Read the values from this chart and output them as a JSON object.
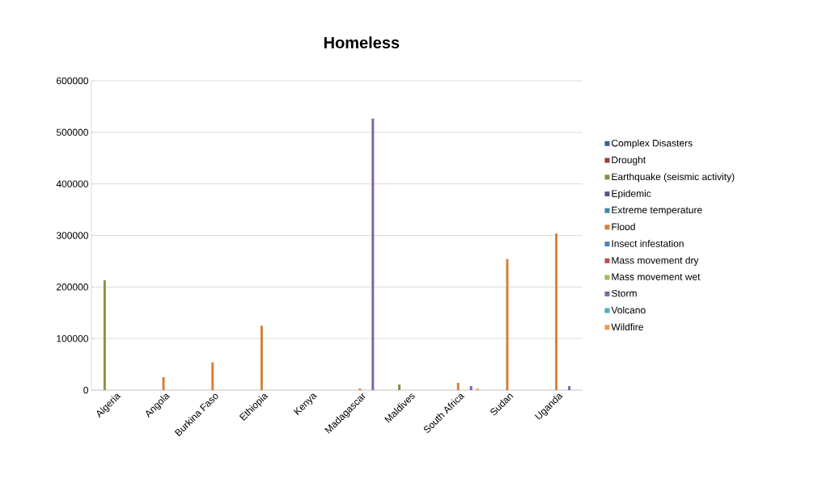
{
  "chart_data": {
    "type": "bar",
    "title": "Homeless",
    "categories": [
      "Algeria",
      "Angola",
      "Burkina Faso",
      "Ethiopia",
      "Kenya",
      "Madagascar",
      "Maldives",
      "South Africa",
      "Sudan",
      "Uganda"
    ],
    "series": [
      {
        "name": "Complex Disasters",
        "color": "#3a5f8e",
        "values": [
          null,
          null,
          null,
          null,
          null,
          null,
          null,
          null,
          null,
          null
        ]
      },
      {
        "name": "Drought",
        "color": "#9b3c39",
        "values": [
          null,
          null,
          null,
          null,
          null,
          null,
          null,
          null,
          null,
          null
        ]
      },
      {
        "name": "Earthquake (seismic activity)",
        "color": "#7d9647",
        "values": [
          213000,
          null,
          null,
          null,
          null,
          null,
          11000,
          null,
          null,
          null
        ]
      },
      {
        "name": "Epidemic",
        "color": "#664f83",
        "values": [
          null,
          null,
          null,
          null,
          null,
          null,
          null,
          null,
          null,
          null
        ]
      },
      {
        "name": "Extreme temperature",
        "color": "#3c8a9e",
        "values": [
          null,
          null,
          null,
          null,
          null,
          null,
          null,
          null,
          null,
          null
        ]
      },
      {
        "name": "Flood",
        "color": "#d5803a",
        "values": [
          null,
          25000,
          54000,
          125000,
          null,
          3000,
          null,
          14000,
          254000,
          304000
        ]
      },
      {
        "name": "Insect infestation",
        "color": "#4f81bd",
        "values": [
          null,
          null,
          null,
          null,
          null,
          null,
          null,
          null,
          null,
          null
        ]
      },
      {
        "name": "Mass movement dry",
        "color": "#c0504d",
        "values": [
          null,
          null,
          null,
          null,
          null,
          null,
          null,
          null,
          null,
          null
        ]
      },
      {
        "name": "Mass movement wet",
        "color": "#9bbb59",
        "values": [
          null,
          null,
          null,
          null,
          null,
          null,
          null,
          null,
          null,
          null
        ]
      },
      {
        "name": "Storm",
        "color": "#8064a2",
        "values": [
          null,
          null,
          null,
          null,
          null,
          527000,
          null,
          8000,
          null,
          8000
        ]
      },
      {
        "name": "Volcano",
        "color": "#4bacc6",
        "values": [
          null,
          null,
          null,
          null,
          null,
          null,
          null,
          null,
          null,
          null
        ]
      },
      {
        "name": "Wildfire",
        "color": "#f79646",
        "values": [
          null,
          null,
          null,
          null,
          null,
          null,
          null,
          3000,
          null,
          null
        ]
      }
    ],
    "ylim": [
      0,
      600000
    ],
    "yticks": [
      0,
      100000,
      200000,
      300000,
      400000,
      500000,
      600000
    ],
    "grid": "y",
    "legend": "right"
  }
}
